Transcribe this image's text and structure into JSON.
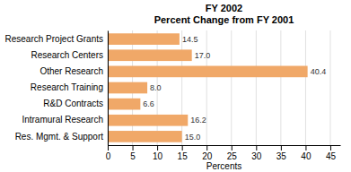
{
  "chart_data": {
    "type": "bar",
    "orientation": "horizontal",
    "title": "FY 2002\nPercent Change from FY 2001",
    "categories": [
      "Research Project Grants",
      "Research Centers",
      "Other Research",
      "Research Training",
      "R&D Contracts",
      "Intramural Research",
      "Res. Mgmt. & Support"
    ],
    "values": [
      14.5,
      17.0,
      40.4,
      8.0,
      6.6,
      16.2,
      15.0
    ],
    "value_labels": [
      "14.5",
      "17.0",
      "40.4",
      "8.0",
      "6.6",
      "16.2",
      "15.0"
    ],
    "data_labels": true,
    "color": "#F0A868",
    "xlabel": "Percents",
    "xlim": [
      0,
      47
    ],
    "xticks": [
      0,
      5,
      10,
      15,
      20,
      25,
      30,
      35,
      40,
      45
    ],
    "grid": true
  }
}
